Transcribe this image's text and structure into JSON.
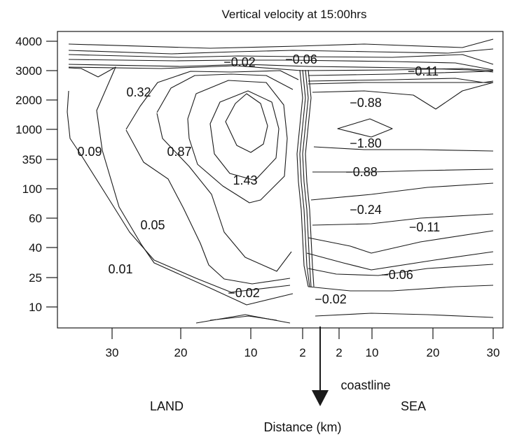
{
  "chart_data": {
    "type": "contour",
    "title": "Vertical velocity at 15:00hrs",
    "xlabel": "Distance (km)",
    "ylabel": "",
    "y_ticks": [
      "4000",
      "3000",
      "2000",
      "1000",
      "350",
      "100",
      "60",
      "40",
      "25",
      "10"
    ],
    "x_ticks": [
      "30",
      "20",
      "10",
      "2",
      "2",
      "10",
      "20",
      "30"
    ],
    "region_labels": {
      "land": "LAND",
      "sea": "SEA"
    },
    "coastline_label": "coastline",
    "contour_labels": [
      "0.32",
      "0.09",
      "0.87",
      "1.43",
      "0.05",
      "0.01",
      "−0.02",
      "−0.06",
      "−0.11",
      "−0.88",
      "−1.80",
      "−0.88",
      "−0.24",
      "−0.11",
      "−0.06",
      "−0.02",
      "−0.02"
    ],
    "grid": false,
    "colors": {
      "line": "#1a1a1a",
      "text": "#111111",
      "background": "#ffffff"
    }
  }
}
